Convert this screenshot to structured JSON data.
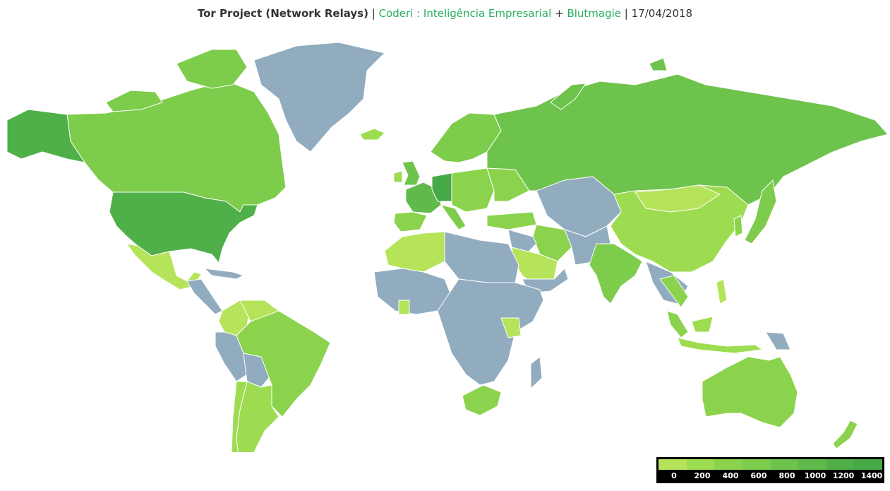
{
  "header": {
    "title": "Tor Project (Network Relays)",
    "sep1": "|",
    "credit1": "Coderi : Inteligência Empresarial",
    "plus": "+",
    "credit2": "Blutmagie",
    "sep2": "|",
    "date": "17/04/2018"
  },
  "colors": {
    "no_data": "#91acbf",
    "scale": [
      "#b5e35a",
      "#9ddc50",
      "#8bd34c",
      "#7dcc4c",
      "#6dc34b",
      "#5fba4b",
      "#4faf49",
      "#45a947"
    ]
  },
  "legend": {
    "ticks": [
      "0",
      "200",
      "400",
      "600",
      "800",
      "1000",
      "1200",
      "1400"
    ]
  }
}
